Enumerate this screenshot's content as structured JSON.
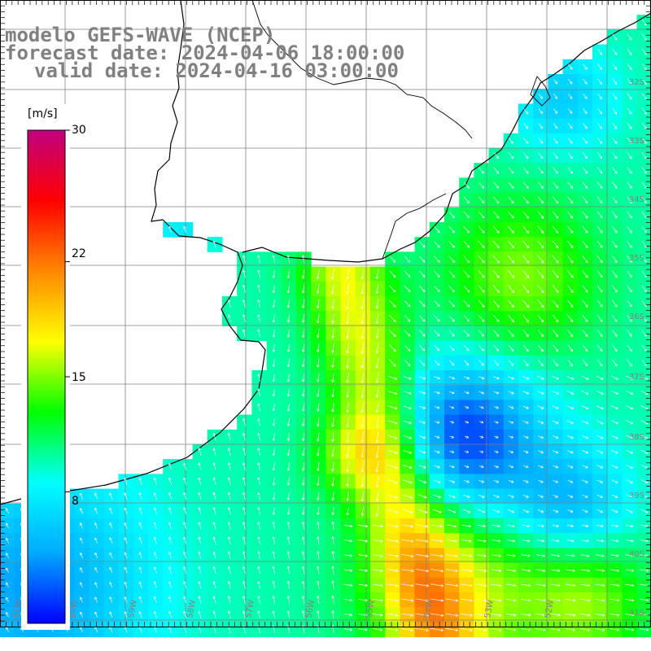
{
  "title": {
    "model": "modelo GEFS-WAVE (NCEP)",
    "forecast": "forecast date: 2024-04-06 18:00:00",
    "valid": "valid date: 2024-04-16 03:00:00"
  },
  "colorbar": {
    "unit": "[m/s]",
    "ticks": [
      "30",
      "22",
      "15",
      "8"
    ],
    "tick_values": [
      30,
      22,
      15,
      8
    ],
    "range": [
      0,
      30
    ],
    "colors": [
      "#0000ff",
      "#00aaff",
      "#00ffff",
      "#00ff00",
      "#ffff00",
      "#ff8800",
      "#ff0000",
      "#c00080"
    ]
  },
  "map": {
    "lat_labels": [
      "32S",
      "33S",
      "34S",
      "35S",
      "36S",
      "37S",
      "38S",
      "39S",
      "40S",
      "41S"
    ],
    "lon_labels": [
      "61W",
      "60W",
      "59W",
      "58W",
      "57W",
      "56W",
      "55W",
      "54W",
      "53W",
      "52W"
    ],
    "land_color": "#ffffff",
    "coast_color": "#000000",
    "grid_color": "#808080",
    "arrow_color": "#ffffff"
  }
}
